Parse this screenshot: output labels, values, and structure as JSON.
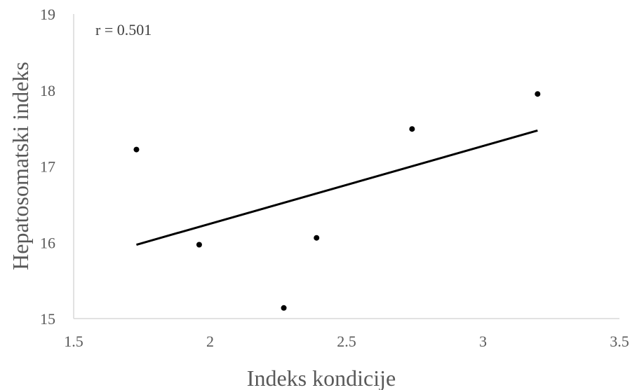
{
  "chart_data": {
    "type": "scatter",
    "title": "",
    "xlabel": "Indeks kondicije",
    "ylabel": "Hepatosomatski indeks",
    "xlim": [
      1.5,
      3.5
    ],
    "ylim": [
      15,
      19
    ],
    "x_ticks": [
      "1.5",
      "2",
      "2.5",
      "3",
      "3.5"
    ],
    "y_ticks": [
      "15",
      "16",
      "17",
      "18",
      "19"
    ],
    "grid": false,
    "legend": "none",
    "annotation": "r = 0.501",
    "series": [
      {
        "points": [
          {
            "x": 1.73,
            "y": 17.22
          },
          {
            "x": 1.96,
            "y": 15.97
          },
          {
            "x": 2.27,
            "y": 15.14
          },
          {
            "x": 2.39,
            "y": 16.06
          },
          {
            "x": 2.74,
            "y": 17.49
          },
          {
            "x": 3.2,
            "y": 17.95
          }
        ],
        "color": "#000000"
      }
    ],
    "trendline": {
      "x": [
        1.73,
        3.2
      ],
      "y": [
        15.97,
        17.47
      ],
      "color": "#000000"
    }
  }
}
